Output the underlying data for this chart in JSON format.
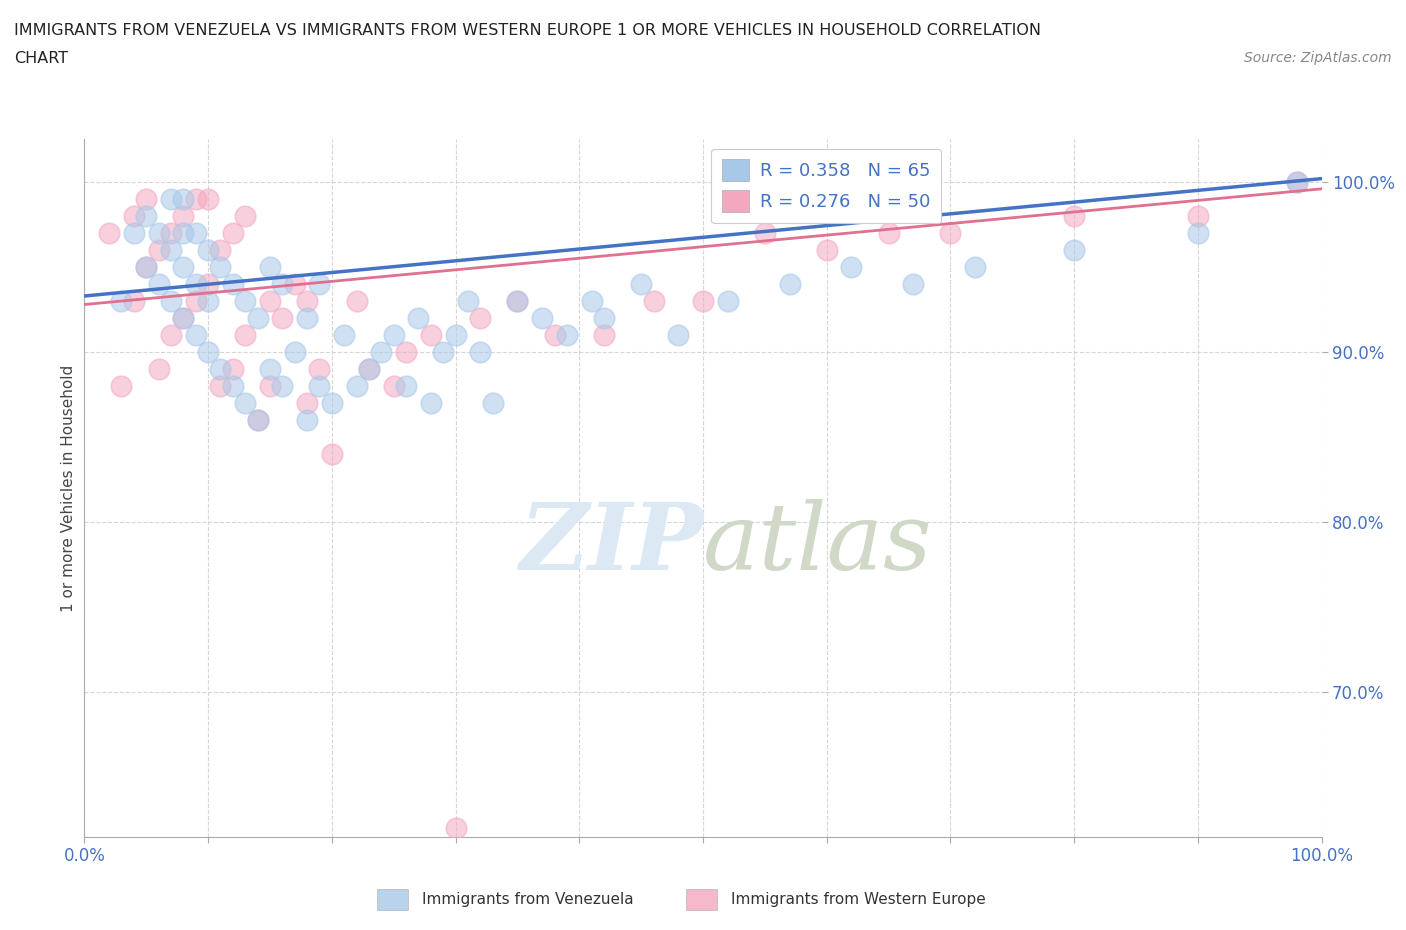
{
  "title_line1": "IMMIGRANTS FROM VENEZUELA VS IMMIGRANTS FROM WESTERN EUROPE 1 OR MORE VEHICLES IN HOUSEHOLD CORRELATION",
  "title_line2": "CHART",
  "source_text": "Source: ZipAtlas.com",
  "ylabel": "1 or more Vehicles in Household",
  "xlim": [
    0.0,
    1.0
  ],
  "ylim": [
    0.615,
    1.025
  ],
  "xtick_positions": [
    0.0,
    0.1,
    0.2,
    0.3,
    0.4,
    0.5,
    0.6,
    0.7,
    0.8,
    0.9,
    1.0
  ],
  "xticklabels_show": [
    "0.0%",
    "",
    "",
    "",
    "",
    "",
    "",
    "",
    "",
    "",
    "100.0%"
  ],
  "ytick_positions": [
    0.7,
    0.8,
    0.9,
    1.0
  ],
  "ytick_labels": [
    "70.0%",
    "80.0%",
    "90.0%",
    "100.0%"
  ],
  "R_venezuela": 0.358,
  "N_venezuela": 65,
  "R_western_europe": 0.276,
  "N_western_europe": 50,
  "color_venezuela": "#a8c8e8",
  "color_western_europe": "#f4a8c0",
  "line_color_venezuela": "#4472c4",
  "line_color_western_europe": "#e07090",
  "legend_text_color": "#4472c4",
  "watermark_color": "#d8e4f0",
  "venezuela_x": [
    0.03,
    0.04,
    0.05,
    0.05,
    0.06,
    0.06,
    0.07,
    0.07,
    0.07,
    0.08,
    0.08,
    0.08,
    0.08,
    0.09,
    0.09,
    0.09,
    0.1,
    0.1,
    0.1,
    0.11,
    0.11,
    0.12,
    0.12,
    0.13,
    0.13,
    0.14,
    0.14,
    0.15,
    0.15,
    0.16,
    0.16,
    0.17,
    0.18,
    0.18,
    0.19,
    0.19,
    0.2,
    0.21,
    0.22,
    0.23,
    0.24,
    0.25,
    0.26,
    0.27,
    0.28,
    0.29,
    0.3,
    0.31,
    0.32,
    0.33,
    0.35,
    0.37,
    0.39,
    0.41,
    0.42,
    0.45,
    0.48,
    0.52,
    0.57,
    0.62,
    0.67,
    0.72,
    0.8,
    0.9,
    0.98
  ],
  "venezuela_y": [
    0.93,
    0.97,
    0.95,
    0.98,
    0.94,
    0.97,
    0.93,
    0.96,
    0.99,
    0.92,
    0.95,
    0.97,
    0.99,
    0.91,
    0.94,
    0.97,
    0.9,
    0.93,
    0.96,
    0.89,
    0.95,
    0.88,
    0.94,
    0.87,
    0.93,
    0.86,
    0.92,
    0.89,
    0.95,
    0.88,
    0.94,
    0.9,
    0.86,
    0.92,
    0.88,
    0.94,
    0.87,
    0.91,
    0.88,
    0.89,
    0.9,
    0.91,
    0.88,
    0.92,
    0.87,
    0.9,
    0.91,
    0.93,
    0.9,
    0.87,
    0.93,
    0.92,
    0.91,
    0.93,
    0.92,
    0.94,
    0.91,
    0.93,
    0.94,
    0.95,
    0.94,
    0.95,
    0.96,
    0.97,
    1.0
  ],
  "western_europe_x": [
    0.02,
    0.03,
    0.04,
    0.04,
    0.05,
    0.05,
    0.06,
    0.06,
    0.07,
    0.07,
    0.08,
    0.08,
    0.09,
    0.09,
    0.1,
    0.1,
    0.11,
    0.11,
    0.12,
    0.12,
    0.13,
    0.13,
    0.14,
    0.15,
    0.15,
    0.16,
    0.17,
    0.18,
    0.18,
    0.19,
    0.2,
    0.22,
    0.23,
    0.25,
    0.26,
    0.28,
    0.3,
    0.32,
    0.35,
    0.38,
    0.42,
    0.46,
    0.5,
    0.55,
    0.6,
    0.65,
    0.7,
    0.8,
    0.9,
    0.98
  ],
  "western_europe_y": [
    0.97,
    0.88,
    0.93,
    0.98,
    0.95,
    0.99,
    0.89,
    0.96,
    0.91,
    0.97,
    0.92,
    0.98,
    0.93,
    0.99,
    0.94,
    0.99,
    0.88,
    0.96,
    0.89,
    0.97,
    0.91,
    0.98,
    0.86,
    0.93,
    0.88,
    0.92,
    0.94,
    0.87,
    0.93,
    0.89,
    0.84,
    0.93,
    0.89,
    0.88,
    0.9,
    0.91,
    0.62,
    0.92,
    0.93,
    0.91,
    0.91,
    0.93,
    0.93,
    0.97,
    0.96,
    0.97,
    0.97,
    0.98,
    0.98,
    1.0
  ],
  "line_ven_x0": 0.0,
  "line_ven_y0": 0.933,
  "line_ven_x1": 1.0,
  "line_ven_y1": 1.002,
  "line_we_x0": 0.0,
  "line_we_y0": 0.928,
  "line_we_x1": 1.0,
  "line_we_y1": 0.996
}
